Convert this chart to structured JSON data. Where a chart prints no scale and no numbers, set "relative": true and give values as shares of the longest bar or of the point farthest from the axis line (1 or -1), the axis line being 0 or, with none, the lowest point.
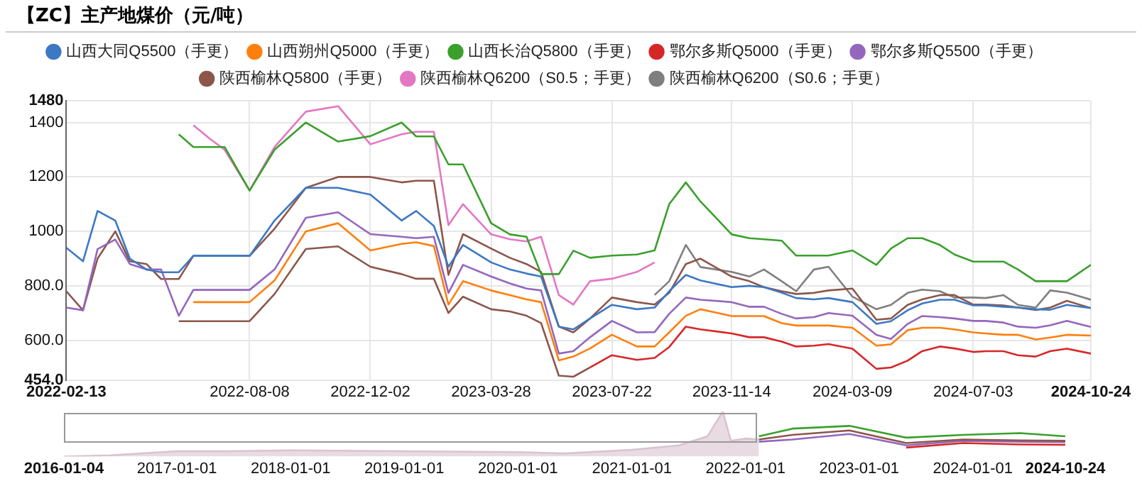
{
  "chart_data": [
    {
      "type": "line",
      "title": "【ZC】主产地煤价（元/吨）",
      "legend": "top",
      "grid": true,
      "marker": "none",
      "line_style": "solid",
      "x": [
        "2022-02-13",
        "2022-03-01",
        "2022-03-15",
        "2022-04-01",
        "2022-04-15",
        "2022-05-01",
        "2022-05-15",
        "2022-06-01",
        "2022-06-15",
        "2022-07-01",
        "2022-07-15",
        "2022-08-08",
        "2022-09-01",
        "2022-10-01",
        "2022-11-01",
        "2022-12-02",
        "2023-01-01",
        "2023-01-15",
        "2023-02-01",
        "2023-02-15",
        "2023-03-01",
        "2023-03-28",
        "2023-04-15",
        "2023-05-01",
        "2023-05-15",
        "2023-06-01",
        "2023-06-15",
        "2023-07-01",
        "2023-07-22",
        "2023-08-15",
        "2023-09-01",
        "2023-09-15",
        "2023-10-01",
        "2023-10-15",
        "2023-11-14",
        "2023-12-01",
        "2023-12-15",
        "2024-01-01",
        "2024-01-15",
        "2024-02-01",
        "2024-02-15",
        "2024-03-09",
        "2024-04-01",
        "2024-04-15",
        "2024-05-01",
        "2024-05-15",
        "2024-06-01",
        "2024-06-15",
        "2024-07-03",
        "2024-07-15",
        "2024-08-01",
        "2024-08-15",
        "2024-09-01",
        "2024-09-15",
        "2024-10-01",
        "2024-10-24"
      ],
      "xlim": [
        "2022-02-13",
        "2024-10-24"
      ],
      "xticks": [
        "2022-02-13",
        "2022-08-08",
        "2022-12-02",
        "2023-03-28",
        "2023-07-22",
        "2023-11-14",
        "2024-03-09",
        "2024-07-03",
        "2024-10-24"
      ],
      "ylim": [
        454,
        1480
      ],
      "yticks": [
        {
          "value": 454,
          "label": "454.0"
        },
        {
          "value": 600,
          "label": "600.0"
        },
        {
          "value": 800,
          "label": "800.0"
        },
        1000,
        1200,
        1400,
        1480
      ],
      "series": [
        {
          "name": "山西大同Q5500（手更）",
          "color": "#3d78c4",
          "values": [
            940,
            890,
            1075,
            1040,
            900,
            860,
            850,
            850,
            910,
            910,
            910,
            910,
            1040,
            1160,
            1160,
            1135,
            1040,
            1075,
            1020,
            870,
            950,
            886,
            860,
            845,
            834,
            650,
            640,
            680,
            730,
            714,
            720,
            780,
            840,
            820,
            795,
            800,
            795,
            775,
            755,
            750,
            755,
            740,
            660,
            670,
            710,
            735,
            749,
            749,
            728,
            728,
            723,
            720,
            714,
            712,
            730,
            718
          ]
        },
        {
          "name": "山西朔州Q5000（手更）",
          "color": "#ff7f0e",
          "values": [
            null,
            null,
            null,
            null,
            null,
            null,
            null,
            null,
            740,
            740,
            740,
            740,
            820,
            1000,
            1030,
            930,
            954,
            960,
            946,
            731,
            817,
            783,
            766,
            750,
            740,
            526,
            540,
            570,
            620,
            577,
            577,
            629,
            690,
            714,
            689,
            689,
            689,
            663,
            654,
            654,
            654,
            646,
            580,
            585,
            637,
            646,
            646,
            640,
            629,
            625,
            620,
            620,
            603,
            610,
            620,
            617
          ]
        },
        {
          "name": "山西长治Q5800（手更）",
          "color": "#3aa02c",
          "values": [
            null,
            null,
            null,
            null,
            null,
            null,
            null,
            1357,
            1310,
            1310,
            1310,
            1150,
            1300,
            1400,
            1330,
            1350,
            1400,
            1349,
            1349,
            1246,
            1246,
            1030,
            989,
            980,
            843,
            843,
            929,
            903,
            911,
            915,
            930,
            1100,
            1180,
            1110,
            989,
            975,
            971,
            966,
            911,
            911,
            911,
            930,
            877,
            937,
            975,
            975,
            950,
            915,
            889,
            889,
            889,
            860,
            817,
            817,
            817,
            877
          ]
        },
        {
          "name": "鄂尔多斯Q5000（手更）",
          "color": "#d62728",
          "values": [
            null,
            null,
            null,
            null,
            null,
            null,
            null,
            null,
            null,
            null,
            null,
            null,
            null,
            null,
            null,
            null,
            null,
            null,
            null,
            null,
            null,
            null,
            null,
            null,
            null,
            null,
            null,
            500,
            545,
            528,
            535,
            575,
            650,
            640,
            625,
            611,
            611,
            595,
            577,
            580,
            586,
            569,
            495,
            500,
            525,
            560,
            577,
            570,
            557,
            560,
            560,
            545,
            540,
            560,
            569,
            551
          ]
        },
        {
          "name": "鄂尔多斯Q5500（手更）",
          "color": "#9467bd",
          "values": [
            720,
            710,
            935,
            970,
            880,
            860,
            860,
            690,
            785,
            785,
            785,
            785,
            860,
            1050,
            1070,
            990,
            980,
            975,
            980,
            774,
            877,
            834,
            809,
            790,
            783,
            551,
            560,
            611,
            671,
            629,
            630,
            697,
            757,
            749,
            740,
            723,
            723,
            697,
            680,
            685,
            700,
            690,
            620,
            605,
            660,
            689,
            685,
            680,
            671,
            671,
            665,
            650,
            646,
            655,
            671,
            649
          ]
        },
        {
          "name": "陕西榆林Q5800（手更）",
          "color": "#8c564b",
          "values": [
            780,
            710,
            900,
            1000,
            890,
            880,
            825,
            825,
            910,
            910,
            910,
            910,
            1010,
            1160,
            1200,
            1200,
            1180,
            1186,
            1186,
            840,
            990,
            937,
            903,
            880,
            851,
            650,
            629,
            680,
            757,
            740,
            731,
            774,
            880,
            900,
            834,
            817,
            795,
            780,
            770,
            774,
            783,
            790,
            675,
            680,
            730,
            750,
            766,
            766,
            731,
            731,
            728,
            720,
            711,
            720,
            745,
            718
          ]
        },
        {
          "color": "#8c564b",
          "values": [
            null,
            null,
            null,
            null,
            null,
            null,
            null,
            670,
            670,
            670,
            670,
            670,
            770,
            935,
            945,
            870,
            843,
            826,
            826,
            700,
            760,
            714,
            706,
            690,
            663,
            470,
            466,
            500,
            null,
            null,
            null,
            null,
            null,
            null,
            null,
            null,
            null,
            null,
            null,
            null,
            null,
            null,
            null,
            null,
            null,
            null,
            null,
            null,
            null,
            null,
            null,
            null,
            null,
            null,
            null,
            null
          ]
        },
        {
          "name": "陕西榆林Q6200（S0.5；手更）",
          "color": "#e377c2",
          "values": [
            null,
            null,
            null,
            null,
            null,
            null,
            null,
            null,
            1390,
            1340,
            1300,
            1150,
            1310,
            1440,
            1460,
            1320,
            1357,
            1366,
            1366,
            1023,
            1100,
            989,
            971,
            963,
            980,
            766,
            731,
            817,
            826,
            851,
            886,
            null,
            null,
            null,
            null,
            null,
            null,
            null,
            null,
            null,
            null,
            null,
            null,
            null,
            null,
            null,
            null,
            null,
            null,
            null,
            null,
            null,
            null,
            null,
            null,
            null
          ]
        },
        {
          "name": "陕西榆林Q6200（S0.6；手更）",
          "color": "#7f7f7f",
          "values": [
            null,
            null,
            null,
            null,
            null,
            null,
            null,
            null,
            null,
            null,
            null,
            null,
            null,
            null,
            null,
            null,
            null,
            null,
            null,
            null,
            null,
            null,
            null,
            null,
            null,
            null,
            null,
            null,
            null,
            null,
            766,
            817,
            950,
            869,
            851,
            834,
            860,
            817,
            780,
            860,
            870,
            760,
            714,
            730,
            774,
            786,
            780,
            757,
            757,
            755,
            766,
            730,
            720,
            783,
            775,
            749
          ]
        }
      ]
    },
    {
      "type": "area",
      "relative": true,
      "tick_labels": "x",
      "legend": false,
      "marker": "none",
      "xlim": [
        "2016-01-04",
        "2024-10-24"
      ],
      "xticks": [
        "2016-01-04",
        "2017-01-01",
        "2018-01-01",
        "2019-01-01",
        "2020-01-01",
        "2021-01-01",
        "2022-01-01",
        "2023-01-01",
        "2024-01-01",
        "2024-10-24"
      ],
      "series": [
        {
          "color": "#d9c3cf",
          "x": [
            "2016-01-04",
            "2016-06-01",
            "2017-01-01",
            "2017-06-01",
            "2018-01-01",
            "2019-01-01",
            "2020-01-01",
            "2020-06-01",
            "2021-01-01",
            "2021-06-01",
            "2021-09-01",
            "2021-10-20",
            "2021-11-15",
            "2022-01-01",
            "2022-02-13"
          ],
          "values": [
            0,
            0.03,
            0.12,
            0.12,
            0.14,
            0.12,
            0.1,
            0.07,
            0.15,
            0.25,
            0.45,
            1,
            0.35,
            0.4,
            0.38
          ]
        },
        {
          "type": "line",
          "color": "#3aa02c",
          "x": [
            "2022-02-13",
            "2022-06-01",
            "2022-12-01",
            "2023-06-01",
            "2023-12-01",
            "2024-06-01",
            "2024-10-24"
          ],
          "values": [
            0.45,
            0.62,
            0.68,
            0.42,
            0.48,
            0.52,
            0.45
          ]
        },
        {
          "type": "line",
          "color": "#8c564b",
          "x": [
            "2022-02-13",
            "2022-06-01",
            "2022-12-01",
            "2023-06-01",
            "2023-12-01",
            "2024-06-01",
            "2024-10-24"
          ],
          "values": [
            0.38,
            0.48,
            0.58,
            0.3,
            0.38,
            0.36,
            0.35
          ]
        },
        {
          "type": "line",
          "color": "#9467bd",
          "x": [
            "2022-02-13",
            "2022-06-01",
            "2022-12-01",
            "2023-06-01",
            "2023-12-01",
            "2024-06-01",
            "2024-10-24"
          ],
          "values": [
            0.33,
            0.38,
            0.5,
            0.25,
            0.35,
            0.33,
            0.32
          ]
        },
        {
          "type": "line",
          "color": "#d62728",
          "x": [
            "2023-06-01",
            "2023-12-01",
            "2024-06-01",
            "2024-10-24"
          ],
          "values": [
            0.2,
            0.3,
            0.27,
            0.26
          ]
        }
      ]
    }
  ]
}
